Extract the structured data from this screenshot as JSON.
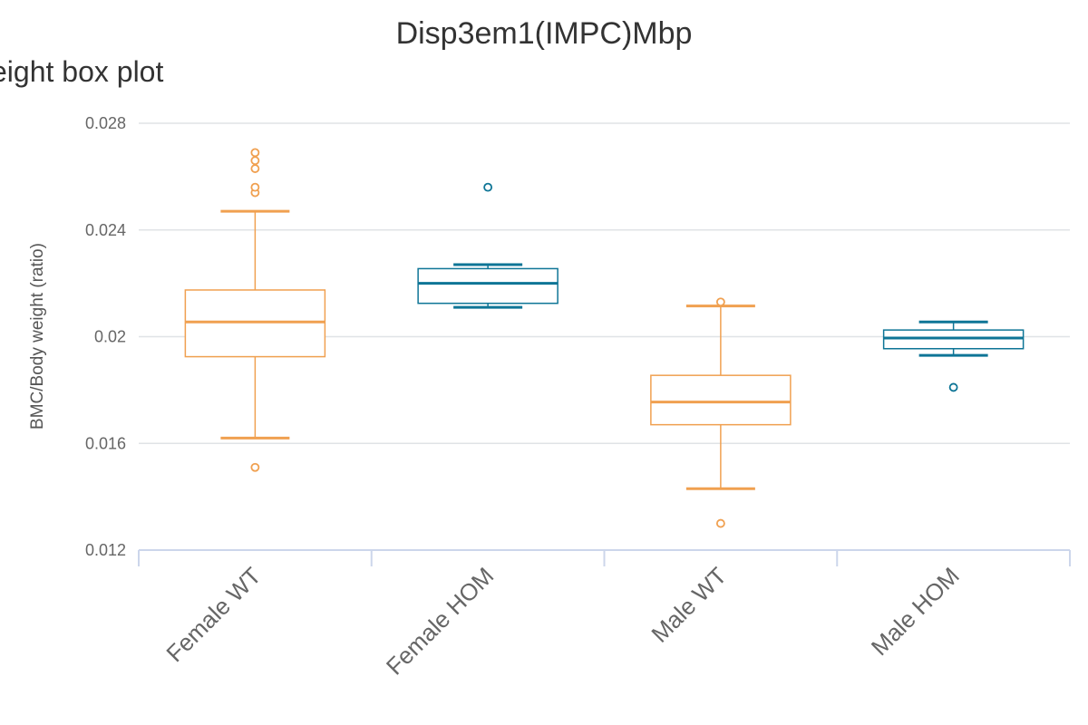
{
  "chart_data": {
    "type": "box",
    "title": "Disp3em1(IMPC)Mbp",
    "subtitle": "eight box plot",
    "ylabel": "BMC/Body weight (ratio)",
    "xlabel": "",
    "ylim": [
      0.012,
      0.028
    ],
    "yticks": [
      0.012,
      0.016,
      0.02,
      0.024,
      0.028
    ],
    "ytick_labels": [
      "0.012",
      "0.016",
      "0.02",
      "0.024",
      "0.028"
    ],
    "grid": true,
    "colors": {
      "WT": "#f0a050",
      "HOM": "#0e7596",
      "grid": "#e0e3e6",
      "axis": "#ccd6eb"
    },
    "categories": [
      "Female WT",
      "Female HOM",
      "Male WT",
      "Male HOM"
    ],
    "boxes": [
      {
        "category": "Female WT",
        "group": "WT",
        "low": 0.0162,
        "q1": 0.01925,
        "median": 0.02055,
        "q3": 0.02175,
        "high": 0.0247,
        "outliers": [
          0.0151,
          0.0254,
          0.0256,
          0.0263,
          0.0266,
          0.0269
        ]
      },
      {
        "category": "Female HOM",
        "group": "HOM",
        "low": 0.0211,
        "q1": 0.02125,
        "median": 0.022,
        "q3": 0.02255,
        "high": 0.0227,
        "outliers": [
          0.0256
        ]
      },
      {
        "category": "Male WT",
        "group": "WT",
        "low": 0.0143,
        "q1": 0.0167,
        "median": 0.01755,
        "q3": 0.01855,
        "high": 0.02115,
        "outliers": [
          0.013,
          0.0213
        ]
      },
      {
        "category": "Male HOM",
        "group": "HOM",
        "low": 0.0193,
        "q1": 0.01955,
        "median": 0.01995,
        "q3": 0.02025,
        "high": 0.02055,
        "outliers": [
          0.0181
        ]
      }
    ]
  }
}
